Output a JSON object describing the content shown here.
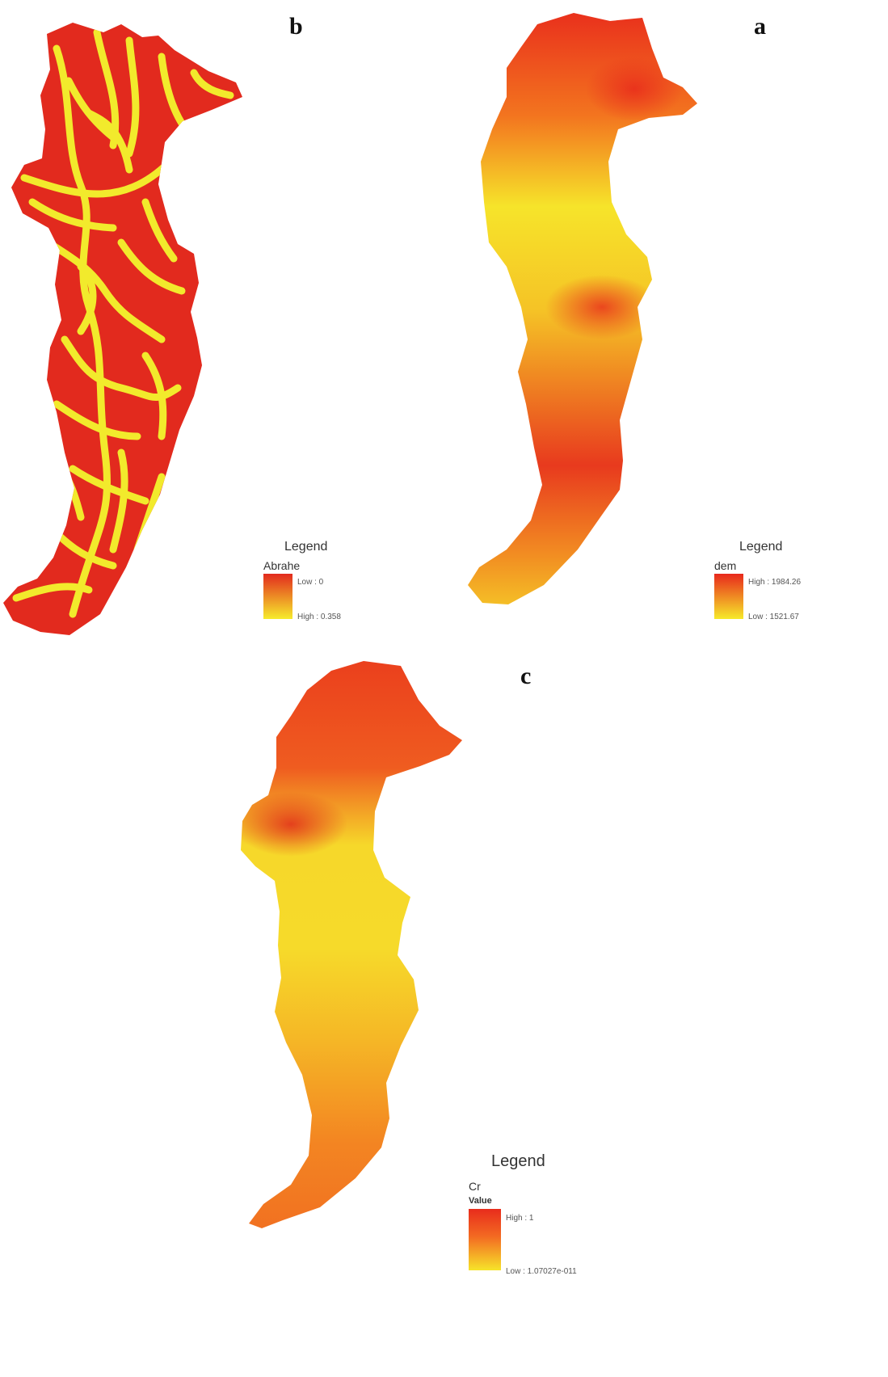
{
  "panels": {
    "a": {
      "letter": "a",
      "legend": {
        "title": "Legend",
        "layer": "dem",
        "high_label": "High : 1984.26",
        "low_label": "Low : 1521.67"
      },
      "colors": {
        "high": "#e8281c",
        "mid": "#f47d22",
        "low": "#f6ea2a"
      }
    },
    "b": {
      "letter": "b",
      "legend": {
        "title": "Legend",
        "layer": "Abrahe",
        "top_label": "Low : 0",
        "bottom_label": "High : 0.358"
      },
      "colors": {
        "red": "#e22a1e",
        "yellow": "#f2ea2c"
      }
    },
    "c": {
      "letter": "c",
      "legend": {
        "title": "Legend",
        "layer": "Cr",
        "sub": "Value",
        "high_label": "High : 1",
        "low_label": "Low : 1.07027e-011"
      },
      "colors": {
        "high": "#e82c1c",
        "mid": "#f36a22",
        "low": "#f6dc2a"
      }
    }
  }
}
